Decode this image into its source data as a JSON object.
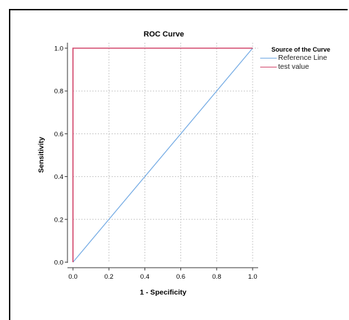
{
  "chart_data": {
    "type": "line",
    "title": "ROC Curve",
    "xlabel": "1 - Specificity",
    "ylabel": "Sensitivity",
    "xlim": [
      0,
      1
    ],
    "ylim": [
      0,
      1
    ],
    "xticks": [
      "0.0",
      "0.2",
      "0.4",
      "0.6",
      "0.8",
      "1.0"
    ],
    "yticks": [
      "0.0",
      "0.2",
      "0.4",
      "0.6",
      "0.8",
      "1.0"
    ],
    "grid": true,
    "legend_title": "Source of the Curve",
    "legend_position": "right",
    "series": [
      {
        "name": "Reference Line",
        "color": "#6fa8e3",
        "x": [
          0,
          1
        ],
        "y": [
          0,
          1
        ]
      },
      {
        "name": "test value",
        "color": "#d2456a",
        "x": [
          0,
          0,
          1
        ],
        "y": [
          0,
          1,
          1
        ]
      }
    ]
  }
}
